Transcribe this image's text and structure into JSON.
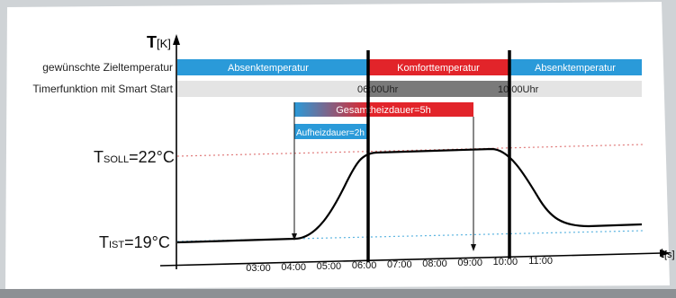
{
  "axes": {
    "y_title_main": "T",
    "y_title_unit": "[K]",
    "x_title_main": "t",
    "x_title_unit": "[s]"
  },
  "rows": {
    "target_temperature_label": "gewünschte Zieltemperatur",
    "timer_label": "Timerfunktion mit Smart Start"
  },
  "segments": {
    "setback_left": "Absenktemperatur",
    "comfort": "Komforttemperatur",
    "setback_right": "Absenktemperatur",
    "timer_start": "06:00Uhr",
    "timer_end": "10:00Uhr",
    "total_heating": "Gesamtheizdauer=5h",
    "warmup": "Aufheizdauer=2h"
  },
  "levels": {
    "t_soll_prefix": "T",
    "t_soll_sub": "SOLL",
    "t_soll_value": "=22°C",
    "t_ist_prefix": "T",
    "t_ist_sub": "IST",
    "t_ist_value": "=19°C"
  },
  "ticks": [
    "03:00",
    "04:00",
    "05:00",
    "06:00",
    "07:00",
    "08:00",
    "09:00",
    "10:00",
    "11:00"
  ],
  "colors": {
    "setback_blue": "#2a9ad9",
    "comfort_red": "#e2242a",
    "timer_gray": "#e4e4e4",
    "timer_dark": "#7a7a7a",
    "soll_line": "#e07a7a",
    "ist_line": "#5bb4e0"
  }
}
